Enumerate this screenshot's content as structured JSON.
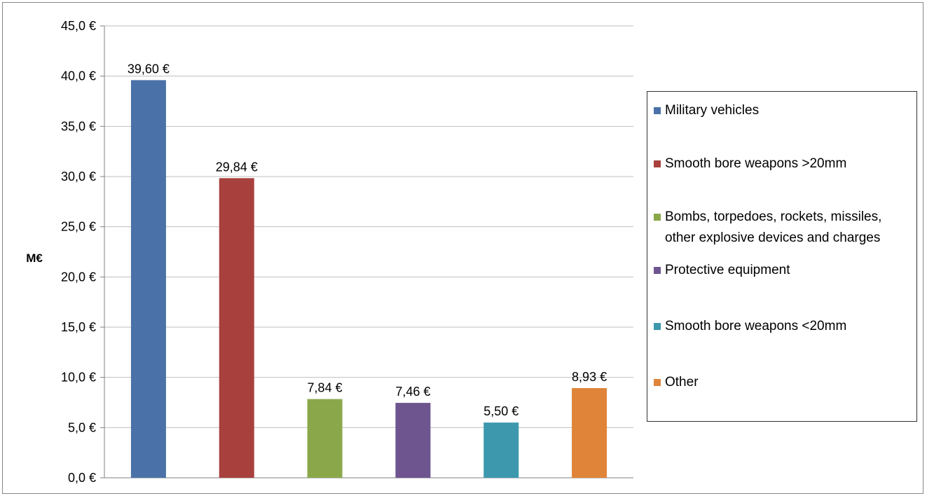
{
  "chart_data": {
    "type": "bar",
    "categories": [
      "Military vehicles",
      "Smooth bore weapons >20mm",
      "Bombs, torpedoes, rockets, missiles, other explosive devices and charges",
      "Protective equipment",
      "Smooth bore weapons <20mm",
      "Other"
    ],
    "values": [
      39.6,
      29.84,
      7.84,
      7.46,
      5.5,
      8.93
    ],
    "value_labels": [
      "39,60 €",
      "29,84 €",
      "7,84 €",
      "7,46 €",
      "5,50 €",
      "8,93 €"
    ],
    "colors": [
      "#4a72a8",
      "#a8413e",
      "#8aa84a",
      "#6e558f",
      "#3d98ae",
      "#df8439"
    ],
    "title": "",
    "xlabel": "",
    "ylabel": "M€",
    "ylim": [
      0,
      45
    ],
    "y_ticks": [
      0,
      5,
      10,
      15,
      20,
      25,
      30,
      35,
      40,
      45
    ],
    "y_tick_labels": [
      "0,0 €",
      "5,0 €",
      "10,0 €",
      "15,0 €",
      "20,0 €",
      "25,0 €",
      "30,0 €",
      "35,0 €",
      "40,0 €",
      "45,0 €"
    ],
    "grid": true,
    "legend_position": "right"
  }
}
